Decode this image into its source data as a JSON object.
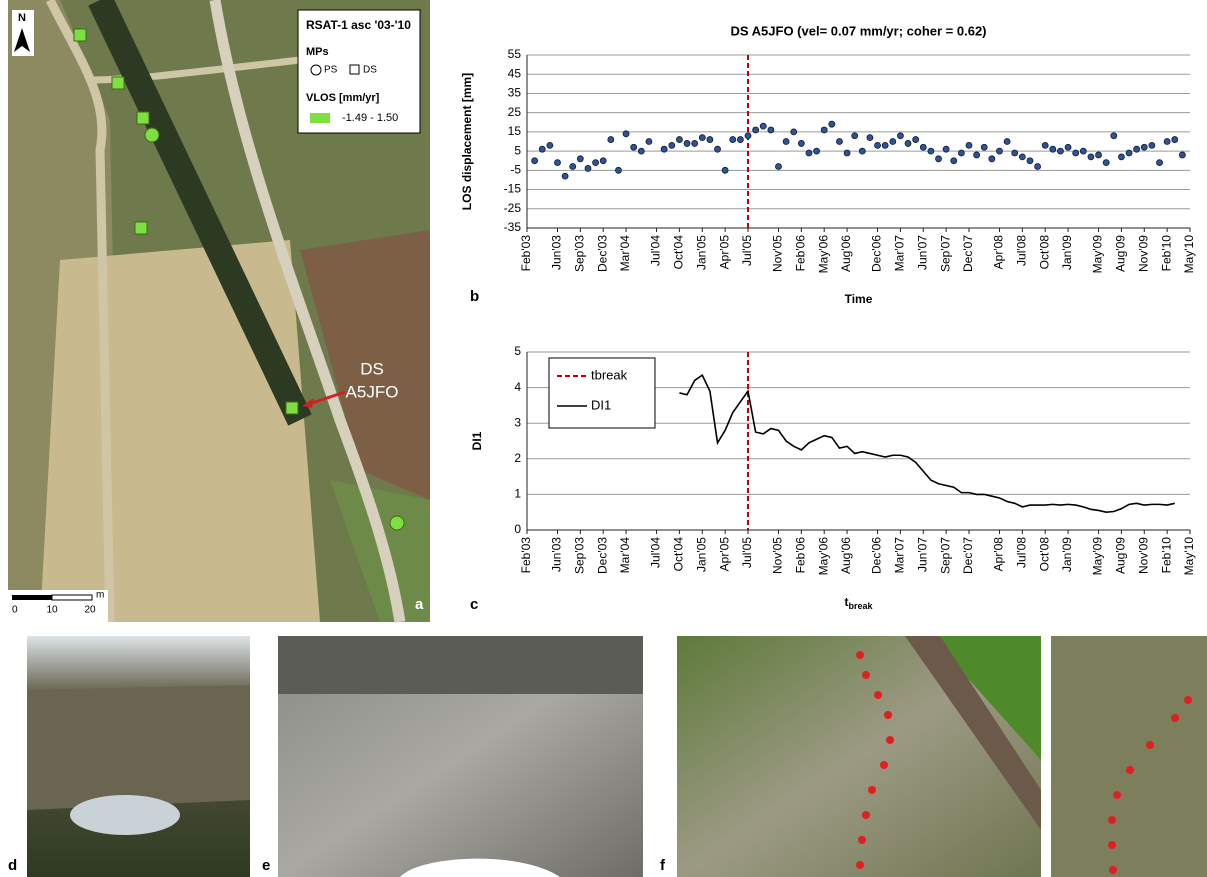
{
  "map": {
    "north": "N",
    "legend_title": "RSAT-1 asc '03-'10",
    "mps_label": "MPs",
    "ps": "PS",
    "ds": "DS",
    "vlos_label": "VLOS [mm/yr]",
    "vlos_range": "-1.49 - 1.50",
    "annotation": [
      "DS",
      "A5JFO"
    ],
    "scale": [
      "0",
      "10",
      "20"
    ],
    "scale_unit": "m",
    "panel": "a"
  },
  "chart_data": [
    {
      "type": "scatter",
      "title": "DS A5JFO (vel= 0.07 mm/yr; coher = 0.62)",
      "y_label": "LOS displacement [mm]",
      "x_label": "Time",
      "panel": "b",
      "color": "#2f5496",
      "grid": true,
      "xlim": [
        "2003-02",
        "2010-05"
      ],
      "ylim": [
        -35,
        55
      ],
      "yticks": [
        -35,
        -25,
        -15,
        -5,
        5,
        15,
        25,
        35,
        45,
        55
      ],
      "xticks": [
        {
          "value": "2003-02",
          "label": "Feb'03"
        },
        {
          "value": "2003-06",
          "label": "Jun'03"
        },
        {
          "value": "2003-09",
          "label": "Sep'03"
        },
        {
          "value": "2003-12",
          "label": "Dec'03"
        },
        {
          "value": "2004-03",
          "label": "Mar'04"
        },
        {
          "value": "2004-07",
          "label": "Jul'04"
        },
        {
          "value": "2004-10",
          "label": "Oct'04"
        },
        {
          "value": "2005-01",
          "label": "Jan'05"
        },
        {
          "value": "2005-04",
          "label": "Apr'05"
        },
        {
          "value": "2005-07",
          "label": "Jul'05"
        },
        {
          "value": "2005-11",
          "label": "Nov'05"
        },
        {
          "value": "2006-02",
          "label": "Feb'06"
        },
        {
          "value": "2006-05",
          "label": "May'06"
        },
        {
          "value": "2006-08",
          "label": "Aug'06"
        },
        {
          "value": "2006-12",
          "label": "Dec'06"
        },
        {
          "value": "2007-03",
          "label": "Mar'07"
        },
        {
          "value": "2007-06",
          "label": "Jun'07"
        },
        {
          "value": "2007-09",
          "label": "Sep'07"
        },
        {
          "value": "2007-12",
          "label": "Dec'07"
        },
        {
          "value": "2008-04",
          "label": "Apr'08"
        },
        {
          "value": "2008-07",
          "label": "Jul'08"
        },
        {
          "value": "2008-10",
          "label": "Oct'08"
        },
        {
          "value": "2009-01",
          "label": "Jan'09"
        },
        {
          "value": "2009-05",
          "label": "May'09"
        },
        {
          "value": "2009-08",
          "label": "Aug'09"
        },
        {
          "value": "2009-11",
          "label": "Nov'09"
        },
        {
          "value": "2010-02",
          "label": "Feb'10"
        },
        {
          "value": "2010-05",
          "label": "May'10"
        }
      ],
      "break": {
        "x": "2005-07",
        "color": "#c00000"
      },
      "x": [
        "2003-03",
        "2003-04",
        "2003-05",
        "2003-06",
        "2003-07",
        "2003-08",
        "2003-09",
        "2003-10",
        "2003-11",
        "2003-12",
        "2004-01",
        "2004-02",
        "2004-03",
        "2004-04",
        "2004-05",
        "2004-06",
        "2004-08",
        "2004-09",
        "2004-10",
        "2004-11",
        "2004-12",
        "2005-01",
        "2005-02",
        "2005-03",
        "2005-04",
        "2005-05",
        "2005-06",
        "2005-07",
        "2005-08",
        "2005-09",
        "2005-10",
        "2005-11",
        "2005-12",
        "2006-01",
        "2006-02",
        "2006-03",
        "2006-04",
        "2006-05",
        "2006-06",
        "2006-07",
        "2006-08",
        "2006-09",
        "2006-10",
        "2006-11",
        "2006-12",
        "2007-01",
        "2007-02",
        "2007-03",
        "2007-04",
        "2007-05",
        "2007-06",
        "2007-07",
        "2007-08",
        "2007-09",
        "2007-10",
        "2007-11",
        "2007-12",
        "2008-01",
        "2008-02",
        "2008-03",
        "2008-04",
        "2008-05",
        "2008-06",
        "2008-07",
        "2008-08",
        "2008-09",
        "2008-10",
        "2008-11",
        "2008-12",
        "2009-01",
        "2009-02",
        "2009-03",
        "2009-04",
        "2009-05",
        "2009-06",
        "2009-07",
        "2009-08",
        "2009-09",
        "2009-10",
        "2009-11",
        "2009-12",
        "2010-01",
        "2010-02",
        "2010-03",
        "2010-04"
      ],
      "values": [
        0,
        6,
        8,
        -1,
        -8,
        -3,
        1,
        -4,
        -1,
        0,
        11,
        -5,
        14,
        7,
        5,
        10,
        6,
        8,
        11,
        9,
        9,
        12,
        11,
        6,
        -5,
        11,
        11,
        13,
        16,
        18,
        16,
        -3,
        10,
        15,
        9,
        4,
        5,
        16,
        19,
        10,
        4,
        13,
        5,
        12,
        8,
        8,
        10,
        13,
        9,
        11,
        7,
        5,
        1,
        6,
        0,
        4,
        8,
        3,
        7,
        1,
        5,
        10,
        4,
        2,
        0,
        -3,
        8,
        6,
        5,
        7,
        4,
        5,
        2,
        3,
        -1,
        13,
        2,
        4,
        6,
        7,
        8,
        -1,
        10,
        11,
        3
      ]
    },
    {
      "type": "line",
      "y_label": "DI1",
      "x_label": {
        "main": "t",
        "sub": "break"
      },
      "panel": "c",
      "grid": true,
      "legend": "upper left",
      "xlim": [
        "2003-02",
        "2010-05"
      ],
      "ylim": [
        0,
        5
      ],
      "yticks": [
        0,
        1,
        2,
        3,
        4,
        5
      ],
      "xticks": [
        {
          "value": "2003-02",
          "label": "Feb'03"
        },
        {
          "value": "2003-06",
          "label": "Jun'03"
        },
        {
          "value": "2003-09",
          "label": "Sep'03"
        },
        {
          "value": "2003-12",
          "label": "Dec'03"
        },
        {
          "value": "2004-03",
          "label": "Mar'04"
        },
        {
          "value": "2004-07",
          "label": "Jul'04"
        },
        {
          "value": "2004-10",
          "label": "Oct'04"
        },
        {
          "value": "2005-01",
          "label": "Jan'05"
        },
        {
          "value": "2005-04",
          "label": "Apr'05"
        },
        {
          "value": "2005-07",
          "label": "Jul'05"
        },
        {
          "value": "2005-11",
          "label": "Nov'05"
        },
        {
          "value": "2006-02",
          "label": "Feb'06"
        },
        {
          "value": "2006-05",
          "label": "May'06"
        },
        {
          "value": "2006-08",
          "label": "Aug'06"
        },
        {
          "value": "2006-12",
          "label": "Dec'06"
        },
        {
          "value": "2007-03",
          "label": "Mar'07"
        },
        {
          "value": "2007-06",
          "label": "Jun'07"
        },
        {
          "value": "2007-09",
          "label": "Sep'07"
        },
        {
          "value": "2007-12",
          "label": "Dec'07"
        },
        {
          "value": "2008-04",
          "label": "Apr'08"
        },
        {
          "value": "2008-07",
          "label": "Jul'08"
        },
        {
          "value": "2008-10",
          "label": "Oct'08"
        },
        {
          "value": "2009-01",
          "label": "Jan'09"
        },
        {
          "value": "2009-05",
          "label": "May'09"
        },
        {
          "value": "2009-08",
          "label": "Aug'09"
        },
        {
          "value": "2009-11",
          "label": "Nov'09"
        },
        {
          "value": "2010-02",
          "label": "Feb'10"
        },
        {
          "value": "2010-05",
          "label": "May'10"
        }
      ],
      "break": {
        "name": "tbreak",
        "x": "2005-07",
        "color": "#c00000"
      },
      "series": [
        {
          "name": "DI1",
          "color": "#000000",
          "x": [
            "2004-10",
            "2004-11",
            "2004-12",
            "2005-01",
            "2005-02",
            "2005-03",
            "2005-04",
            "2005-05",
            "2005-06",
            "2005-07",
            "2005-08",
            "2005-09",
            "2005-10",
            "2005-11",
            "2005-12",
            "2006-01",
            "2006-02",
            "2006-03",
            "2006-04",
            "2006-05",
            "2006-06",
            "2006-07",
            "2006-08",
            "2006-09",
            "2006-10",
            "2006-11",
            "2006-12",
            "2007-01",
            "2007-02",
            "2007-03",
            "2007-04",
            "2007-05",
            "2007-06",
            "2007-07",
            "2007-08",
            "2007-09",
            "2007-10",
            "2007-11",
            "2007-12",
            "2008-01",
            "2008-02",
            "2008-03",
            "2008-04",
            "2008-05",
            "2008-06",
            "2008-07",
            "2008-08",
            "2008-09",
            "2008-10",
            "2008-11",
            "2008-12",
            "2009-01",
            "2009-02",
            "2009-03",
            "2009-04",
            "2009-05",
            "2009-06",
            "2009-07",
            "2009-08",
            "2009-09",
            "2009-10",
            "2009-11",
            "2009-12",
            "2010-01",
            "2010-02",
            "2010-03"
          ],
          "values": [
            3.85,
            3.8,
            4.2,
            4.35,
            3.9,
            2.45,
            2.8,
            3.3,
            3.6,
            3.9,
            2.75,
            2.7,
            2.85,
            2.8,
            2.5,
            2.35,
            2.25,
            2.45,
            2.55,
            2.65,
            2.6,
            2.3,
            2.35,
            2.15,
            2.2,
            2.15,
            2.1,
            2.05,
            2.1,
            2.1,
            2.05,
            1.9,
            1.65,
            1.4,
            1.3,
            1.25,
            1.2,
            1.05,
            1.05,
            1.0,
            1.0,
            0.95,
            0.9,
            0.8,
            0.75,
            0.65,
            0.7,
            0.7,
            0.7,
            0.72,
            0.7,
            0.72,
            0.7,
            0.65,
            0.58,
            0.55,
            0.5,
            0.52,
            0.6,
            0.72,
            0.75,
            0.7,
            0.72,
            0.72,
            0.7,
            0.75
          ]
        }
      ]
    }
  ],
  "photos": {
    "labels": [
      "d",
      "e",
      "f"
    ]
  }
}
